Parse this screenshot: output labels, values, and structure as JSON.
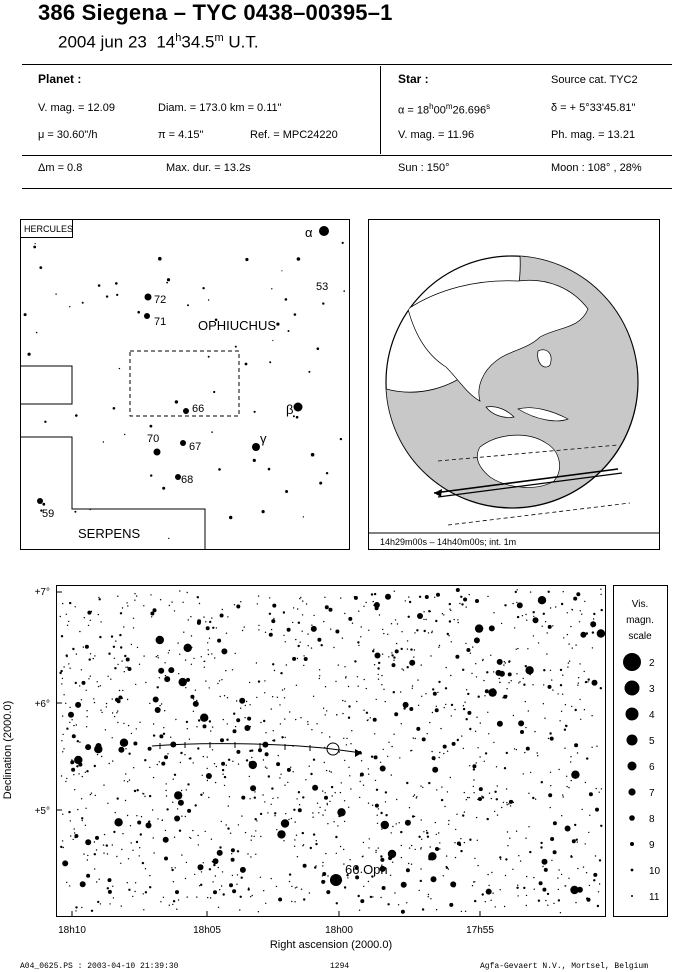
{
  "header": {
    "title": "386 Siegena  –  TYC 0438–00395–1",
    "date": "2004 jun 23",
    "time_h": "14",
    "time_h_sup": "h",
    "time_m": "34.5",
    "time_m_sup": "m",
    "time_suffix": "U.T."
  },
  "planet": {
    "label": "Planet :",
    "vmag": "V. mag. = 12.09",
    "diam": "Diam. = 173.0 km = 0.11\"",
    "mu": "μ =  30.60\"/h",
    "pi": "π =  4.15\"",
    "ref": "Ref. = MPC24220"
  },
  "star": {
    "label": "Star :",
    "source": "Source cat.  TYC2",
    "alpha": "α = 18h00m26.696s",
    "delta": "δ = + 5°33'45.81\"",
    "vmag": "V. mag. = 11.96",
    "phmag": "Ph. mag. = 13.21"
  },
  "bottom_row": {
    "dm": "Δm = 0.8",
    "maxdur": "Max. dur. = 13.2s",
    "sun": "Sun : 150°",
    "moon": "Moon : 108° , 28%"
  },
  "finder": {
    "constellation_tag": "HERCULES",
    "labels": {
      "ophiuchus": "OPHIUCHUS",
      "serpens": "SERPENS",
      "alpha": "α",
      "beta": "β",
      "gamma": "γ",
      "n53": "53",
      "n72": "72",
      "n71": "71",
      "n66": "66",
      "n70": "70",
      "n67": "67",
      "n68": "68",
      "n59": "59"
    }
  },
  "globe": {
    "caption": "14h29m00s – 14h40m00s; int.  1m"
  },
  "starchart": {
    "dec_ticks": [
      "+7°",
      "+6°",
      "+5°"
    ],
    "ra_ticks": [
      "18h10",
      "18h05",
      "18h00",
      "17h55"
    ],
    "ylabel": "Declination (2000.0)",
    "xlabel": "Right ascension (2000.0)",
    "star_label": "66 Oph",
    "scale_title_1": "Vis.",
    "scale_title_2": "magn.",
    "scale_title_3": "scale",
    "scale_values": [
      "2",
      "3",
      "4",
      "5",
      "6",
      "7",
      "8",
      "9",
      "10",
      "11"
    ]
  },
  "footer": {
    "left": "A04_0625.PS : 2003-04-10 21:39:30",
    "mid": "1294",
    "right": "Agfa-Gevaert N.V., Mortsel, Belgium"
  }
}
